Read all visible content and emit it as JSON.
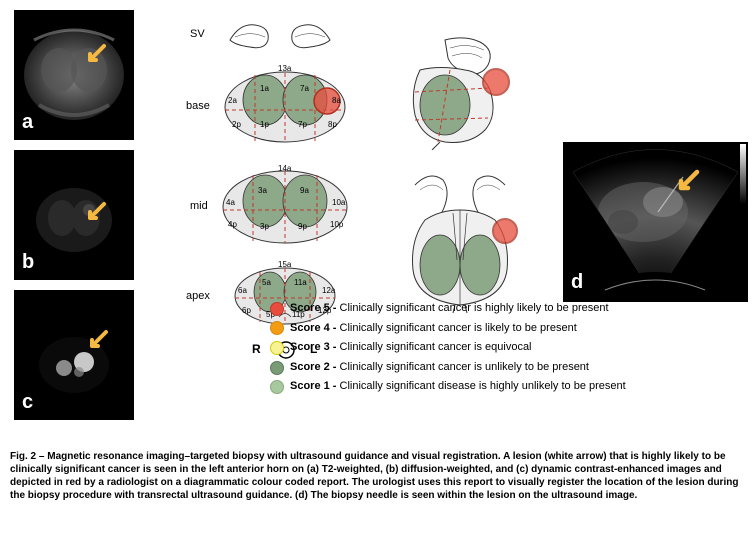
{
  "figure_number": "Fig. 2",
  "caption": "Magnetic resonance imaging–targeted biopsy with ultrasound guidance and visual registration. A lesion (white arrow) that is highly likely to be clinically significant cancer is seen in the left anterior horn on (a) T2-weighted, (b) diffusion-weighted, and (c) dynamic contrast-enhanced images and depicted in red by a radiologist on a diagrammatic colour coded report. The urologist uses this report to visually register the location of the lesion during the biopsy procedure with transrectal ultrasound guidance. (d) The biopsy needle is seen within the lesion on the ultrasound image.",
  "panels": {
    "a": "a",
    "b": "b",
    "c": "c",
    "d": "d"
  },
  "levels": {
    "sv": "SV",
    "base": "base",
    "mid": "mid",
    "apex": "apex"
  },
  "side_labels": {
    "r": "R",
    "l": "L"
  },
  "zones": {
    "base": [
      "13a",
      "1a",
      "7a",
      "2a",
      "8a",
      "2p",
      "1p",
      "7p",
      "8p"
    ],
    "mid": [
      "14a",
      "3a",
      "9a",
      "4a",
      "10a",
      "4p",
      "3p",
      "9p",
      "10p"
    ],
    "apex": [
      "15a",
      "5a",
      "11a",
      "6a",
      "12a",
      "6p",
      "5p",
      "11p",
      "12p"
    ]
  },
  "legend": [
    {
      "score": "Score 5",
      "text": "Clinically significant cancer is highly likely to be present",
      "fill": "#e74c3c",
      "stroke": "#c0392b"
    },
    {
      "score": "Score 4",
      "text": "Clinically significant cancer is likely to be present",
      "fill": "#f39c12",
      "stroke": "#d68910"
    },
    {
      "score": "Score 3",
      "text": "Clinically significant cancer is equivocal",
      "fill": "#f7f395",
      "stroke": "#d4cd00"
    },
    {
      "score": "Score 2",
      "text": "Clinically significant cancer is unlikely to be present",
      "fill": "#7a9b76",
      "stroke": "#5a7a56"
    },
    {
      "score": "Score 1",
      "text": "Clinically significant disease is highly unlikely to be present",
      "fill": "#a8c99f",
      "stroke": "#88a97f"
    }
  ],
  "arrow_color": "#f5b942",
  "dashline_color": "#c0392b",
  "zone_fill": "#8ea88a",
  "zone_outline": "#333333",
  "lesion_color": "#e74c3c",
  "lesion_stroke": "#b03020"
}
